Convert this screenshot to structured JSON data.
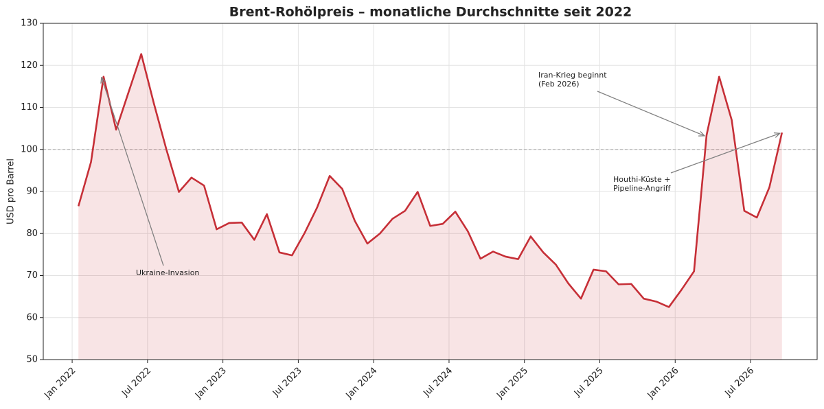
{
  "chart_data": {
    "type": "line",
    "title": "Brent-Rohölpreis – monatliche Durchschnitte seit 2022",
    "y_label": "USD pro Barrel",
    "color": "#c62f37",
    "fill": true,
    "grid": true,
    "hline": 100,
    "x": [
      "2022-01",
      "2022-02",
      "2022-03",
      "2022-04",
      "2022-05",
      "2022-06",
      "2022-07",
      "2022-08",
      "2022-09",
      "2022-10",
      "2022-11",
      "2022-12",
      "2023-01",
      "2023-02",
      "2023-03",
      "2023-04",
      "2023-05",
      "2023-06",
      "2023-07",
      "2023-08",
      "2023-09",
      "2023-10",
      "2023-11",
      "2023-12",
      "2024-01",
      "2024-02",
      "2024-03",
      "2024-04",
      "2024-05",
      "2024-06",
      "2024-07",
      "2024-08",
      "2024-09",
      "2024-10",
      "2024-11",
      "2024-12",
      "2025-01",
      "2025-02",
      "2025-03",
      "2025-04",
      "2025-05",
      "2025-06",
      "2025-07",
      "2025-08",
      "2025-09",
      "2025-10",
      "2025-11",
      "2025-12",
      "2026-01",
      "2026-02",
      "2026-03",
      "2026-04",
      "2026-05",
      "2026-06",
      "2026-07",
      "2026-08",
      "2026-09"
    ],
    "values": [
      86.5,
      97,
      117.3,
      104.7,
      113.7,
      122.7,
      111,
      100,
      89.9,
      93.3,
      91.4,
      81,
      82.5,
      82.6,
      78.5,
      84.6,
      75.5,
      74.8,
      80.1,
      86.2,
      93.7,
      90.6,
      83,
      77.6,
      80,
      83.5,
      85.4,
      89.9,
      81.8,
      82.3,
      85.2,
      80.5,
      74,
      75.7,
      74.5,
      73.9,
      79.3,
      75.5,
      72.6,
      68.1,
      64.5,
      71.4,
      71,
      67.9,
      68,
      64.5,
      63.8,
      62.5,
      66.6,
      71,
      103.4,
      117.3,
      107,
      85.4,
      83.8,
      91,
      104
    ],
    "ylim": [
      50,
      130
    ],
    "yticks": [
      50,
      60,
      70,
      80,
      90,
      100,
      110,
      120,
      130
    ],
    "xticks": [
      {
        "value": "2022-01",
        "label": "Jan 2022"
      },
      {
        "value": "2022-07",
        "label": "Jul 2022"
      },
      {
        "value": "2023-01",
        "label": "Jan 2023"
      },
      {
        "value": "2023-07",
        "label": "Jul 2023"
      },
      {
        "value": "2024-01",
        "label": "Jan 2024"
      },
      {
        "value": "2024-07",
        "label": "Jul 2024"
      },
      {
        "value": "2025-01",
        "label": "Jan 2025"
      },
      {
        "value": "2025-07",
        "label": "Jul 2025"
      },
      {
        "value": "2026-01",
        "label": "Jan 2026"
      },
      {
        "value": "2026-07",
        "label": "Jul 2026"
      }
    ],
    "annotations": [
      {
        "text": [
          "Ukraine-Invasion"
        ],
        "x": "2022-03"
      },
      {
        "text": [
          "Iran-Krieg beginnt",
          "(Feb 2026)"
        ],
        "x": "2026-03"
      },
      {
        "text": [
          "Houthi-Küste +",
          "Pipeline-Angriff"
        ],
        "x": "2026-09"
      }
    ]
  }
}
